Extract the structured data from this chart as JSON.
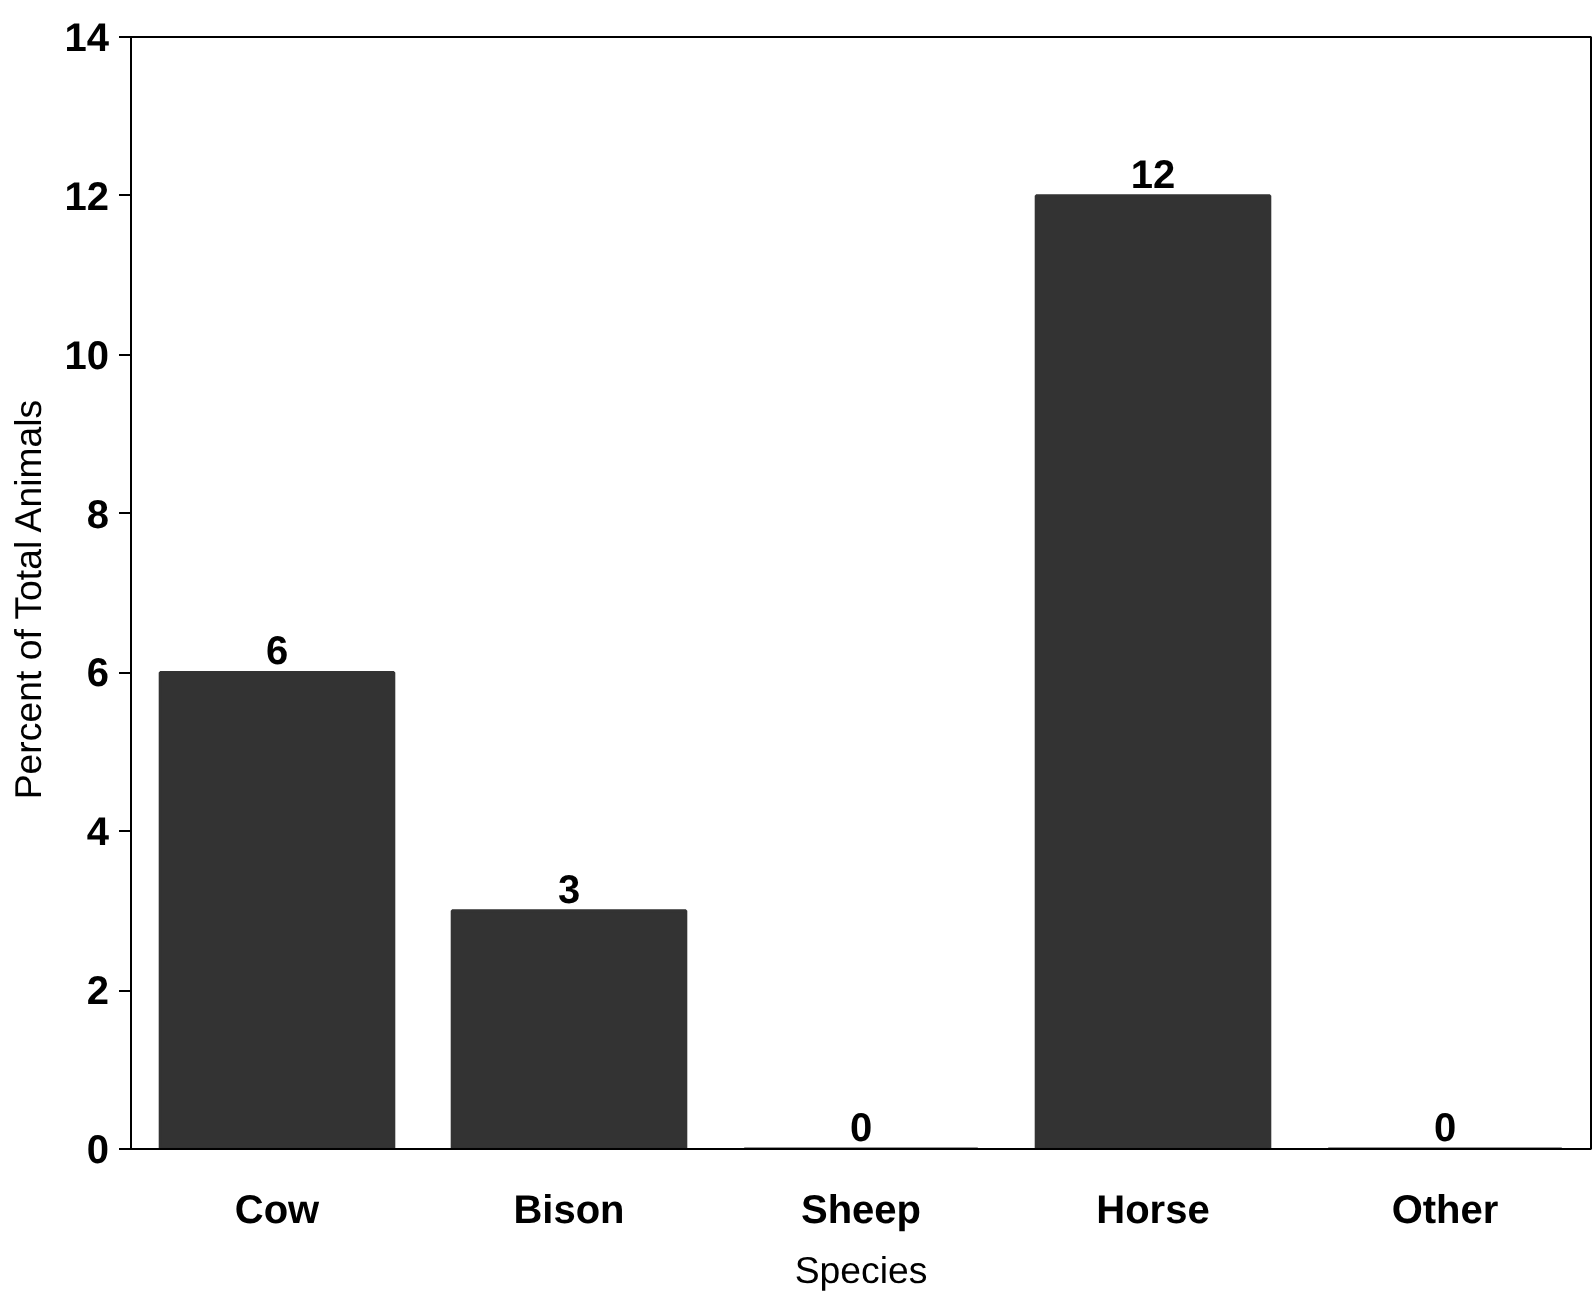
{
  "chart_data": {
    "type": "bar",
    "xlabel": "Species",
    "ylabel": "Percent of Total  Animals",
    "categories": [
      "Cow",
      "Bison",
      "Sheep",
      "Horse",
      "Other"
    ],
    "values": [
      6,
      3,
      0,
      12,
      0
    ],
    "color": "#333333",
    "ylim": [
      0,
      14
    ],
    "yticks": [
      0,
      2,
      4,
      6,
      8,
      10,
      12,
      14
    ],
    "grid": false,
    "data_labels": true
  }
}
